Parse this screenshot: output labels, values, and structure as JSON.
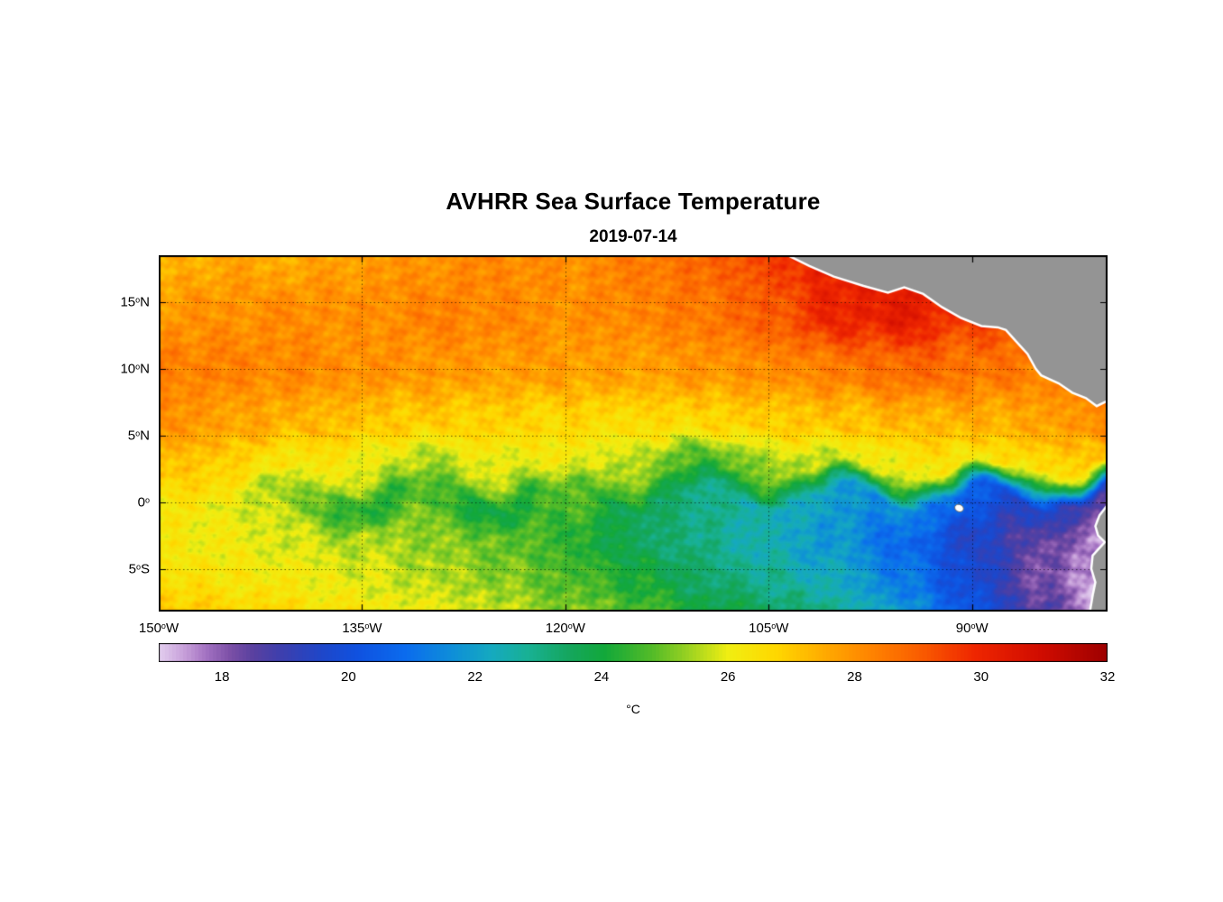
{
  "title": "AVHRR Sea Surface Temperature",
  "subtitle": "2019-07-14",
  "axes": {
    "x_ticks": [
      {
        "num": "150",
        "deg": "o",
        "hem": "W",
        "lon": -150
      },
      {
        "num": "135",
        "deg": "o",
        "hem": "W",
        "lon": -135
      },
      {
        "num": "120",
        "deg": "o",
        "hem": "W",
        "lon": -120
      },
      {
        "num": "105",
        "deg": "o",
        "hem": "W",
        "lon": -105
      },
      {
        "num": "90",
        "deg": "o",
        "hem": "W",
        "lon": -90
      }
    ],
    "y_ticks": [
      {
        "num": "15",
        "deg": "o",
        "hem": "N",
        "lat": 15
      },
      {
        "num": "10",
        "deg": "o",
        "hem": "N",
        "lat": 10
      },
      {
        "num": "5",
        "deg": "o",
        "hem": "N",
        "lat": 5
      },
      {
        "num": "0",
        "deg": "o",
        "hem": "",
        "lat": 0
      },
      {
        "num": "5",
        "deg": "o",
        "hem": "S",
        "lat": -5
      }
    ]
  },
  "colorbar": {
    "label": "°C",
    "vmin": 17,
    "vmax": 32,
    "tick_values": [
      18,
      20,
      22,
      24,
      26,
      28,
      30,
      32
    ],
    "stops": [
      {
        "t": 0.0,
        "c": "#e2cdee"
      },
      {
        "t": 0.025,
        "c": "#c9a2db"
      },
      {
        "t": 0.05,
        "c": "#a271c1"
      },
      {
        "t": 0.075,
        "c": "#7b4fa6"
      },
      {
        "t": 0.1,
        "c": "#5840a0"
      },
      {
        "t": 0.13,
        "c": "#3c3fae"
      },
      {
        "t": 0.17,
        "c": "#1f46c8"
      },
      {
        "t": 0.21,
        "c": "#0f52e0"
      },
      {
        "t": 0.26,
        "c": "#0b6cee"
      },
      {
        "t": 0.31,
        "c": "#0e8fd8"
      },
      {
        "t": 0.35,
        "c": "#15a9c0"
      },
      {
        "t": 0.39,
        "c": "#18b193"
      },
      {
        "t": 0.43,
        "c": "#15a660"
      },
      {
        "t": 0.47,
        "c": "#12a83a"
      },
      {
        "t": 0.52,
        "c": "#53bb28"
      },
      {
        "t": 0.56,
        "c": "#9ed321"
      },
      {
        "t": 0.6,
        "c": "#f0ee12"
      },
      {
        "t": 0.65,
        "c": "#ffd800"
      },
      {
        "t": 0.7,
        "c": "#ffac00"
      },
      {
        "t": 0.75,
        "c": "#ff8400"
      },
      {
        "t": 0.8,
        "c": "#fa5f00"
      },
      {
        "t": 0.86,
        "c": "#ef2600"
      },
      {
        "t": 0.93,
        "c": "#d00c00"
      },
      {
        "t": 1.0,
        "c": "#9e0000"
      }
    ]
  },
  "chart_data": {
    "type": "heatmap",
    "title": "AVHRR Sea Surface Temperature",
    "subtitle": "2019-07-14",
    "units": "°C",
    "value_range": [
      17,
      32
    ],
    "lon_range": [
      -150,
      -80
    ],
    "lat_range": [
      -8.2,
      18.5
    ],
    "grid_lons": [
      -150,
      -145,
      -140,
      -135,
      -130,
      -125,
      -120,
      -115,
      -110,
      -105,
      -100,
      -95,
      -90,
      -85,
      -80
    ],
    "grid_lats": [
      18.5,
      14,
      10,
      6,
      3,
      0,
      -3,
      -6,
      -8.2
    ],
    "sst": [
      [
        27.3,
        27.6,
        27.5,
        27.8,
        28.0,
        28.2,
        28.0,
        28.4,
        28.8,
        29.5,
        30.2,
        29.8,
        29.2,
        29.0,
        29.0
      ],
      [
        27.9,
        28.0,
        28.1,
        28.0,
        28.3,
        28.2,
        28.0,
        28.2,
        28.5,
        29.0,
        30.0,
        30.3,
        29.5,
        29.2,
        29.0
      ],
      [
        28.4,
        28.3,
        28.2,
        28.0,
        27.9,
        27.8,
        27.8,
        27.7,
        27.9,
        28.1,
        28.4,
        28.8,
        28.6,
        28.4,
        28.6
      ],
      [
        28.0,
        27.7,
        27.4,
        27.1,
        26.9,
        26.8,
        26.7,
        26.6,
        26.7,
        26.9,
        27.1,
        27.3,
        27.4,
        27.6,
        28.2
      ],
      [
        27.2,
        26.8,
        26.4,
        26.0,
        25.6,
        25.9,
        26.2,
        25.4,
        24.7,
        25.3,
        25.8,
        26.2,
        26.4,
        26.6,
        27.0
      ],
      [
        26.4,
        26.0,
        25.2,
        24.2,
        24.7,
        23.8,
        24.9,
        23.6,
        23.1,
        22.4,
        22.0,
        21.4,
        20.6,
        19.4,
        18.6
      ],
      [
        26.3,
        26.1,
        25.8,
        25.6,
        25.3,
        25.0,
        24.4,
        23.6,
        23.0,
        22.4,
        21.8,
        20.8,
        19.6,
        18.4,
        17.4
      ],
      [
        26.6,
        26.4,
        26.2,
        25.9,
        25.6,
        25.3,
        24.8,
        24.2,
        23.4,
        22.9,
        22.3,
        21.2,
        19.8,
        18.2,
        17.2
      ],
      [
        27.0,
        26.8,
        26.6,
        26.3,
        26.0,
        25.7,
        25.2,
        24.8,
        24.0,
        23.5,
        22.9,
        21.8,
        20.2,
        18.6,
        17.2
      ]
    ],
    "land_color": "#949494",
    "coast_color": "#ffffff",
    "land_polygons": {
      "central_america": [
        [
          -103.8,
          18.6
        ],
        [
          -102.0,
          17.7
        ],
        [
          -100.2,
          16.9
        ],
        [
          -98.0,
          16.2
        ],
        [
          -96.2,
          15.7
        ],
        [
          -95.0,
          16.1
        ],
        [
          -93.6,
          15.6
        ],
        [
          -92.2,
          14.6
        ],
        [
          -90.8,
          13.8
        ],
        [
          -89.3,
          13.2
        ],
        [
          -88.1,
          13.1
        ],
        [
          -87.5,
          12.9
        ],
        [
          -86.8,
          12.1
        ],
        [
          -85.9,
          11.1
        ],
        [
          -85.3,
          10.0
        ],
        [
          -84.9,
          9.5
        ],
        [
          -83.6,
          8.9
        ],
        [
          -82.6,
          8.2
        ],
        [
          -81.6,
          7.8
        ],
        [
          -80.8,
          7.2
        ],
        [
          -80.0,
          7.6
        ],
        [
          -80.0,
          18.6
        ]
      ],
      "south_america": [
        [
          -80.0,
          -0.2
        ],
        [
          -80.6,
          -1.0
        ],
        [
          -80.9,
          -1.8
        ],
        [
          -80.7,
          -2.5
        ],
        [
          -80.2,
          -3.0
        ],
        [
          -81.1,
          -4.0
        ],
        [
          -81.2,
          -5.0
        ],
        [
          -80.9,
          -6.0
        ],
        [
          -81.1,
          -7.0
        ],
        [
          -81.3,
          -8.2
        ],
        [
          -80.0,
          -8.2
        ]
      ]
    },
    "islands": [
      {
        "name": "galapagos",
        "lon": -90.95,
        "lat": -0.45
      }
    ],
    "grid_lines": {
      "lats": [
        15,
        10,
        5,
        0,
        -5
      ],
      "lons": [
        -135,
        -120,
        -105,
        -90
      ],
      "style": "dotted"
    }
  }
}
